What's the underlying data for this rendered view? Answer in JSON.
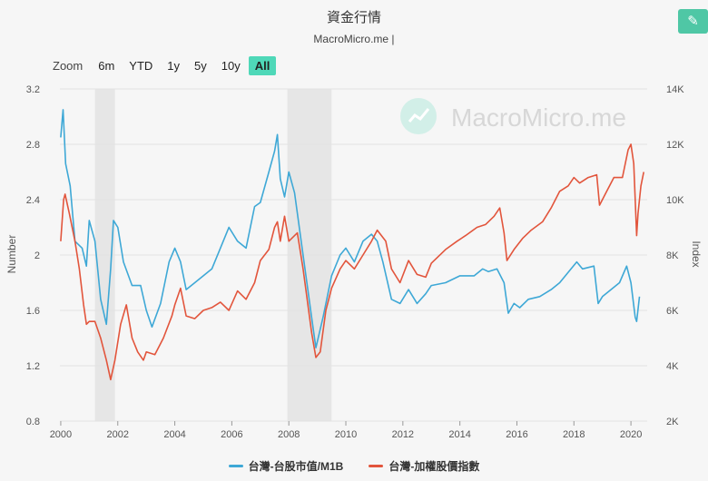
{
  "header": {
    "title": "資金行情",
    "subtitle": "MacroMicro.me |",
    "edit_icon": "pencil-icon"
  },
  "zoom": {
    "label": "Zoom",
    "options": [
      "6m",
      "YTD",
      "1y",
      "5y",
      "10y",
      "All"
    ],
    "active": "All"
  },
  "watermark": {
    "text": "MacroMicro.me",
    "logo_icon": "chart-logo-icon"
  },
  "colors": {
    "blue": "#3ea8d6",
    "red": "#e2553c",
    "accent": "#4fd8b8",
    "recession": "#e6e6e6"
  },
  "chart_data": {
    "type": "line",
    "title": "資金行情",
    "ylabel": "Number",
    "y2label": "Index",
    "xlim": [
      1999.97,
      2020.57
    ],
    "ylim": [
      0.8,
      3.2
    ],
    "y2lim": [
      2000,
      14000
    ],
    "x_ticks": [
      "2000",
      "2002",
      "2004",
      "2006",
      "2008",
      "2010",
      "2012",
      "2014",
      "2016",
      "2018",
      "2020"
    ],
    "y_ticks": [
      "0.8",
      "1.2",
      "1.6",
      "2",
      "2.4",
      "2.8",
      "3.2"
    ],
    "y2_ticks": [
      "2K",
      "4K",
      "6K",
      "8K",
      "10K",
      "12K",
      "14K"
    ],
    "grid": true,
    "legend_position": "bottom",
    "recessions": [
      [
        2001.2,
        2001.9
      ],
      [
        2007.95,
        2009.5
      ]
    ],
    "series": [
      {
        "name": "台灣-台股市值/M1B",
        "color": "#3ea8d6",
        "axis": "left",
        "points": [
          [
            2000.0,
            2.85
          ],
          [
            2000.08,
            3.05
          ],
          [
            2000.17,
            2.66
          ],
          [
            2000.33,
            2.5
          ],
          [
            2000.5,
            2.1
          ],
          [
            2000.75,
            2.05
          ],
          [
            2000.9,
            1.92
          ],
          [
            2001.0,
            2.25
          ],
          [
            2001.2,
            2.1
          ],
          [
            2001.4,
            1.68
          ],
          [
            2001.6,
            1.5
          ],
          [
            2001.75,
            1.9
          ],
          [
            2001.85,
            2.25
          ],
          [
            2002.0,
            2.2
          ],
          [
            2002.2,
            1.95
          ],
          [
            2002.5,
            1.78
          ],
          [
            2002.8,
            1.78
          ],
          [
            2003.0,
            1.6
          ],
          [
            2003.2,
            1.48
          ],
          [
            2003.5,
            1.65
          ],
          [
            2003.8,
            1.95
          ],
          [
            2004.0,
            2.05
          ],
          [
            2004.2,
            1.95
          ],
          [
            2004.4,
            1.75
          ],
          [
            2004.7,
            1.8
          ],
          [
            2005.0,
            1.85
          ],
          [
            2005.3,
            1.9
          ],
          [
            2005.6,
            2.05
          ],
          [
            2005.9,
            2.2
          ],
          [
            2006.2,
            2.1
          ],
          [
            2006.5,
            2.05
          ],
          [
            2006.8,
            2.35
          ],
          [
            2007.0,
            2.38
          ],
          [
            2007.3,
            2.6
          ],
          [
            2007.5,
            2.75
          ],
          [
            2007.6,
            2.87
          ],
          [
            2007.7,
            2.55
          ],
          [
            2007.85,
            2.42
          ],
          [
            2008.0,
            2.6
          ],
          [
            2008.2,
            2.45
          ],
          [
            2008.5,
            2.0
          ],
          [
            2008.8,
            1.55
          ],
          [
            2008.95,
            1.33
          ],
          [
            2009.2,
            1.55
          ],
          [
            2009.5,
            1.85
          ],
          [
            2009.8,
            2.0
          ],
          [
            2010.0,
            2.05
          ],
          [
            2010.3,
            1.95
          ],
          [
            2010.6,
            2.1
          ],
          [
            2010.9,
            2.15
          ],
          [
            2011.1,
            2.1
          ],
          [
            2011.3,
            1.95
          ],
          [
            2011.6,
            1.68
          ],
          [
            2011.9,
            1.65
          ],
          [
            2012.2,
            1.75
          ],
          [
            2012.5,
            1.65
          ],
          [
            2012.8,
            1.72
          ],
          [
            2013.0,
            1.78
          ],
          [
            2013.5,
            1.8
          ],
          [
            2014.0,
            1.85
          ],
          [
            2014.5,
            1.85
          ],
          [
            2014.8,
            1.9
          ],
          [
            2015.0,
            1.88
          ],
          [
            2015.3,
            1.9
          ],
          [
            2015.55,
            1.8
          ],
          [
            2015.7,
            1.58
          ],
          [
            2015.9,
            1.65
          ],
          [
            2016.1,
            1.62
          ],
          [
            2016.4,
            1.68
          ],
          [
            2016.8,
            1.7
          ],
          [
            2017.2,
            1.75
          ],
          [
            2017.5,
            1.8
          ],
          [
            2017.9,
            1.9
          ],
          [
            2018.1,
            1.95
          ],
          [
            2018.3,
            1.9
          ],
          [
            2018.7,
            1.92
          ],
          [
            2018.85,
            1.65
          ],
          [
            2019.0,
            1.7
          ],
          [
            2019.3,
            1.75
          ],
          [
            2019.6,
            1.8
          ],
          [
            2019.85,
            1.92
          ],
          [
            2020.0,
            1.8
          ],
          [
            2020.15,
            1.55
          ],
          [
            2020.2,
            1.52
          ],
          [
            2020.3,
            1.7
          ]
        ]
      },
      {
        "name": "台灣-加權股價指數",
        "color": "#e2553c",
        "axis": "right",
        "points": [
          [
            2000.0,
            8500
          ],
          [
            2000.1,
            10000
          ],
          [
            2000.15,
            10200
          ],
          [
            2000.3,
            9500
          ],
          [
            2000.5,
            8500
          ],
          [
            2000.65,
            7500
          ],
          [
            2000.8,
            6200
          ],
          [
            2000.9,
            5500
          ],
          [
            2001.0,
            5600
          ],
          [
            2001.2,
            5600
          ],
          [
            2001.4,
            5000
          ],
          [
            2001.6,
            4200
          ],
          [
            2001.75,
            3500
          ],
          [
            2001.9,
            4200
          ],
          [
            2002.1,
            5500
          ],
          [
            2002.3,
            6200
          ],
          [
            2002.5,
            5000
          ],
          [
            2002.7,
            4500
          ],
          [
            2002.9,
            4200
          ],
          [
            2003.0,
            4500
          ],
          [
            2003.3,
            4400
          ],
          [
            2003.6,
            5000
          ],
          [
            2003.9,
            5800
          ],
          [
            2004.0,
            6200
          ],
          [
            2004.2,
            6800
          ],
          [
            2004.4,
            5800
          ],
          [
            2004.7,
            5700
          ],
          [
            2005.0,
            6000
          ],
          [
            2005.3,
            6100
          ],
          [
            2005.6,
            6300
          ],
          [
            2005.9,
            6000
          ],
          [
            2006.2,
            6700
          ],
          [
            2006.5,
            6400
          ],
          [
            2006.8,
            7000
          ],
          [
            2007.0,
            7800
          ],
          [
            2007.3,
            8200
          ],
          [
            2007.5,
            9000
          ],
          [
            2007.6,
            9200
          ],
          [
            2007.7,
            8500
          ],
          [
            2007.85,
            9400
          ],
          [
            2008.0,
            8500
          ],
          [
            2008.3,
            8800
          ],
          [
            2008.5,
            7500
          ],
          [
            2008.8,
            5200
          ],
          [
            2008.95,
            4300
          ],
          [
            2009.1,
            4500
          ],
          [
            2009.3,
            6000
          ],
          [
            2009.5,
            6800
          ],
          [
            2009.8,
            7500
          ],
          [
            2010.0,
            7800
          ],
          [
            2010.3,
            7500
          ],
          [
            2010.6,
            8000
          ],
          [
            2010.9,
            8500
          ],
          [
            2011.1,
            8900
          ],
          [
            2011.4,
            8500
          ],
          [
            2011.6,
            7500
          ],
          [
            2011.9,
            7000
          ],
          [
            2012.2,
            7800
          ],
          [
            2012.5,
            7300
          ],
          [
            2012.8,
            7200
          ],
          [
            2013.0,
            7700
          ],
          [
            2013.5,
            8200
          ],
          [
            2013.9,
            8500
          ],
          [
            2014.2,
            8700
          ],
          [
            2014.6,
            9000
          ],
          [
            2014.9,
            9100
          ],
          [
            2015.2,
            9400
          ],
          [
            2015.4,
            9700
          ],
          [
            2015.55,
            8800
          ],
          [
            2015.65,
            7800
          ],
          [
            2015.9,
            8200
          ],
          [
            2016.2,
            8600
          ],
          [
            2016.5,
            8900
          ],
          [
            2016.9,
            9200
          ],
          [
            2017.2,
            9700
          ],
          [
            2017.5,
            10300
          ],
          [
            2017.8,
            10500
          ],
          [
            2018.0,
            10800
          ],
          [
            2018.2,
            10600
          ],
          [
            2018.5,
            10800
          ],
          [
            2018.8,
            10900
          ],
          [
            2018.9,
            9800
          ],
          [
            2019.1,
            10200
          ],
          [
            2019.4,
            10800
          ],
          [
            2019.7,
            10800
          ],
          [
            2019.9,
            11800
          ],
          [
            2020.0,
            12000
          ],
          [
            2020.1,
            11300
          ],
          [
            2020.2,
            8700
          ],
          [
            2020.25,
            9500
          ],
          [
            2020.35,
            10500
          ],
          [
            2020.45,
            11000
          ]
        ]
      }
    ]
  }
}
